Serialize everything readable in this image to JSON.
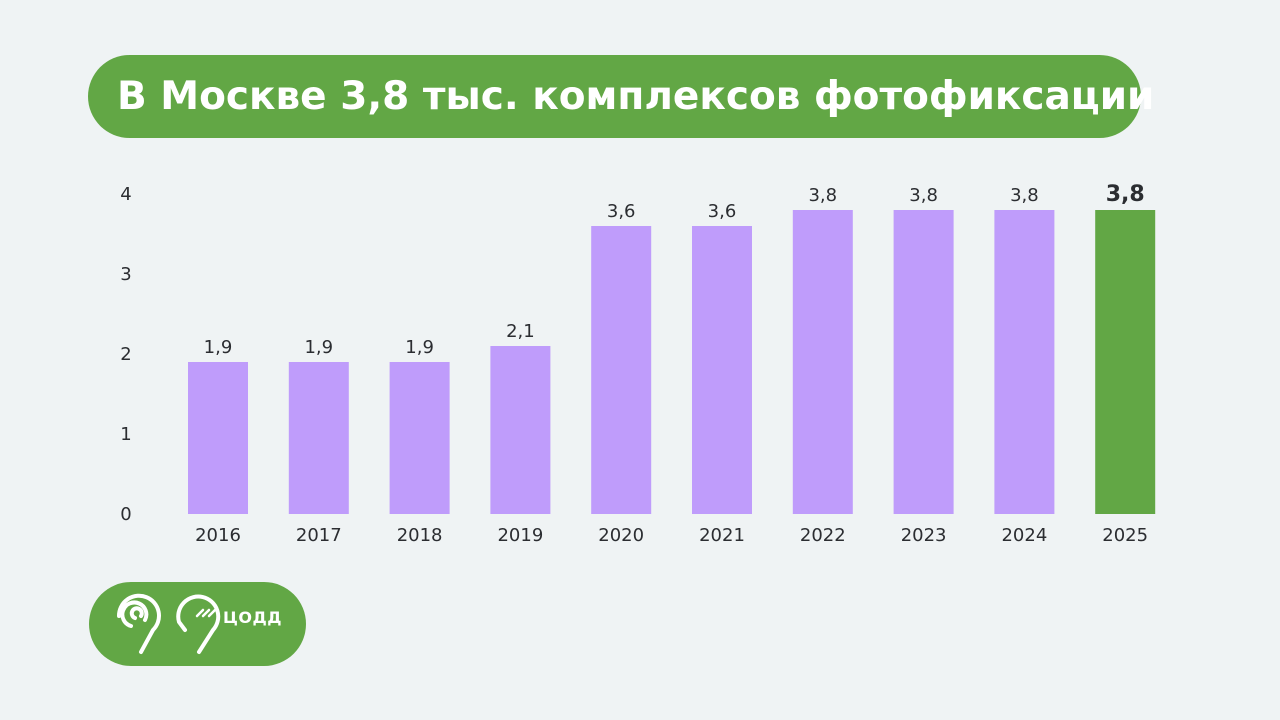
{
  "header": {
    "title": "В Москве 3,8 тыс. комплексов фотофиксации"
  },
  "logo": {
    "text": "ЦОДД"
  },
  "colors": {
    "bar": "#bf9cfb",
    "highlight": "#62a745",
    "background": "#eff3f4",
    "text": "#2b2d31"
  },
  "chart_data": {
    "type": "bar",
    "categories": [
      "2016",
      "2017",
      "2018",
      "2019",
      "2020",
      "2021",
      "2022",
      "2023",
      "2024",
      "2025"
    ],
    "values": [
      1.9,
      1.9,
      1.9,
      2.1,
      3.6,
      3.6,
      3.8,
      3.8,
      3.8,
      3.8
    ],
    "value_labels": [
      "1,9",
      "1,9",
      "1,9",
      "2,1",
      "3,6",
      "3,6",
      "3,8",
      "3,8",
      "3,8",
      "3,8"
    ],
    "highlight_index": 9,
    "ylim": [
      0,
      4
    ],
    "yticks": [
      "0",
      "1",
      "2",
      "3",
      "4"
    ],
    "grid": false,
    "legend": "none"
  }
}
